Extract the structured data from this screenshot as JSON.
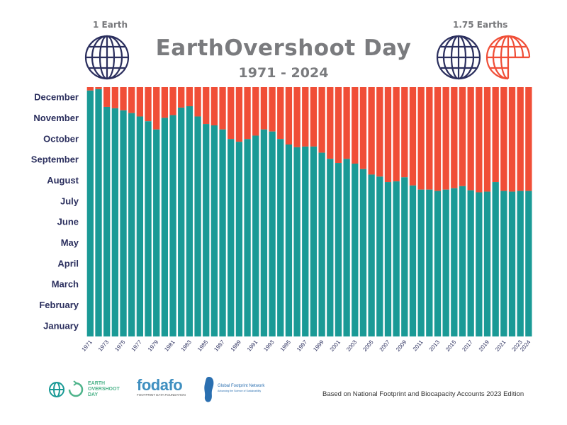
{
  "header": {
    "title": "EarthOvershoot Day",
    "subtitle": "1971 - 2024",
    "left_label": "1 Earth",
    "right_label": "1.75 Earths",
    "globe_icon": "globe-icon"
  },
  "colors": {
    "within_budget": "#1a9a96",
    "overshoot": "#f04e37",
    "axis_text": "#2b2f5e",
    "title": "#7a7b7e"
  },
  "chart_data": {
    "type": "bar",
    "stacked": true,
    "title": "EarthOvershoot Day",
    "subtitle": "1971 - 2024",
    "y_unit": "day of year",
    "ylim": [
      0,
      365
    ],
    "y_tick_labels": [
      "January",
      "February",
      "March",
      "April",
      "May",
      "June",
      "July",
      "August",
      "September",
      "October",
      "November",
      "December"
    ],
    "x_tick_labels": [
      "1971",
      "1973",
      "1975",
      "1977",
      "1979",
      "1981",
      "1983",
      "1985",
      "1987",
      "1989",
      "1991",
      "1993",
      "1995",
      "1997",
      "1999",
      "2001",
      "2003",
      "2005",
      "2007",
      "2009",
      "2011",
      "2013",
      "2015",
      "2017",
      "2019",
      "2021",
      "2023",
      "2024"
    ],
    "categories": [
      1971,
      1972,
      1973,
      1974,
      1975,
      1976,
      1977,
      1978,
      1979,
      1980,
      1981,
      1982,
      1983,
      1984,
      1985,
      1986,
      1987,
      1988,
      1989,
      1990,
      1991,
      1992,
      1993,
      1994,
      1995,
      1996,
      1997,
      1998,
      1999,
      2000,
      2001,
      2002,
      2003,
      2004,
      2005,
      2006,
      2007,
      2008,
      2009,
      2010,
      2011,
      2012,
      2013,
      2014,
      2015,
      2016,
      2017,
      2018,
      2019,
      2020,
      2021,
      2022,
      2023,
      2024
    ],
    "overshoot_day_of_year": [
      360,
      362,
      336,
      334,
      331,
      327,
      322,
      315,
      303,
      320,
      324,
      335,
      337,
      322,
      311,
      309,
      303,
      289,
      285,
      289,
      294,
      303,
      300,
      289,
      281,
      277,
      278,
      278,
      269,
      260,
      254,
      260,
      253,
      245,
      237,
      234,
      226,
      227,
      233,
      221,
      215,
      215,
      213,
      215,
      217,
      220,
      214,
      211,
      212,
      226,
      213,
      212,
      213,
      213
    ],
    "grid": false,
    "legend": "none"
  },
  "footer": {
    "logo1_lines": [
      "EARTH",
      "OVERSHOOT",
      "DAY"
    ],
    "logo2_name": "fodafo",
    "logo2_sub": "FOOTPRINT DATA FOUNDATION",
    "logo3_name": "Global Footprint Network",
    "logo3_sub": "Advancing the Science of Sustainability",
    "source": "Based on National Footprint and Biocapacity Accounts 2023 Edition"
  }
}
